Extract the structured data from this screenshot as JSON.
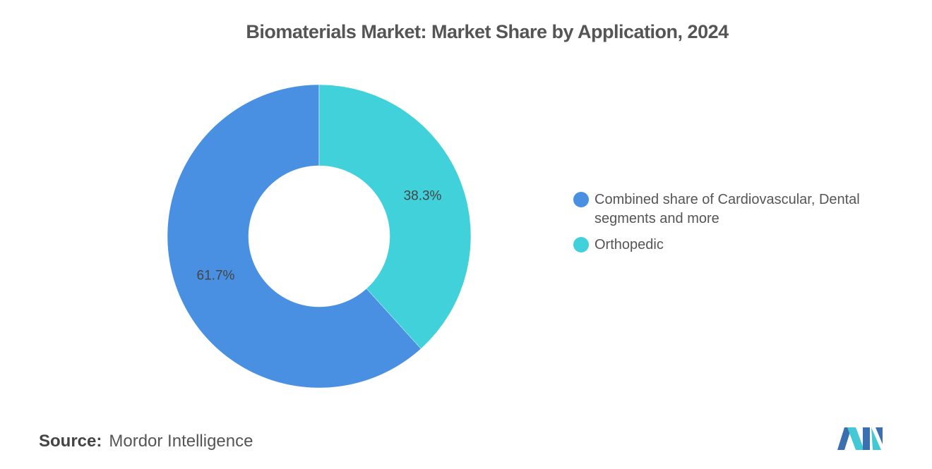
{
  "title": "Biomaterials Market: Market Share by Application, 2024",
  "source": {
    "label": "Source:",
    "name": "Mordor Intelligence"
  },
  "chart_data": {
    "type": "donut",
    "categories": [
      "Combined share of Cardiovascular, Dental segments and more",
      "Orthopedic"
    ],
    "values": [
      61.7,
      38.3
    ],
    "value_labels": [
      "61.7%",
      "38.3%"
    ],
    "colors": [
      "#4a90e2",
      "#40d1db"
    ]
  }
}
